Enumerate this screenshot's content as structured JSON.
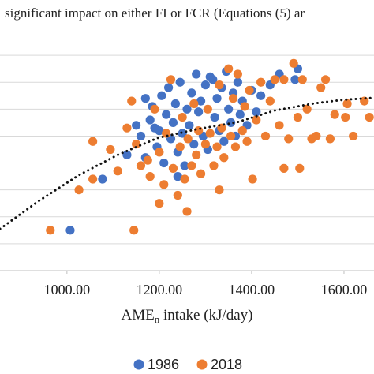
{
  "chart_data": {
    "type": "scatter",
    "annotation": "significant impact on either FI or FCR (Equations (5) ar",
    "x_label": [
      "AME",
      "n",
      " intake (kJ/day)"
    ],
    "xlim": [
      855,
      1665
    ],
    "ylim": [
      0,
      9
    ],
    "xticks": [
      {
        "value": 1000,
        "label": "1000.00"
      },
      {
        "value": 1200,
        "label": "1200.00"
      },
      {
        "value": 1400,
        "label": "1400.00"
      },
      {
        "value": 1600,
        "label": "1600.00"
      }
    ],
    "ygrid": [
      0,
      1,
      2,
      3,
      4,
      5,
      6,
      7,
      8
    ],
    "grid": true,
    "legend": "bottom",
    "series": [
      {
        "name": "1986",
        "color": "#4472c4",
        "x": [
          1007,
          1077,
          1130,
          1150,
          1160,
          1170,
          1180,
          1185,
          1195,
          1200,
          1205,
          1210,
          1215,
          1220,
          1225,
          1230,
          1235,
          1240,
          1245,
          1250,
          1255,
          1260,
          1265,
          1270,
          1275,
          1280,
          1285,
          1290,
          1295,
          1300,
          1305,
          1310,
          1316,
          1320,
          1325,
          1330,
          1335,
          1340,
          1345,
          1350,
          1355,
          1360,
          1365,
          1370,
          1375,
          1380,
          1390,
          1400,
          1410,
          1420,
          1440,
          1460,
          1494,
          1500,
          1170,
          1240,
          1190
        ],
        "values": [
          1.5,
          3.4,
          4.3,
          5.4,
          5.0,
          4.2,
          5.6,
          6.1,
          4.6,
          5.2,
          6.5,
          4.0,
          5.8,
          6.8,
          4.9,
          5.5,
          6.2,
          4.4,
          7.0,
          5.1,
          3.9,
          6.0,
          5.4,
          6.6,
          4.7,
          7.3,
          5.9,
          6.3,
          5.0,
          6.9,
          4.5,
          7.2,
          7.1,
          5.7,
          6.4,
          5.2,
          6.8,
          4.8,
          7.4,
          6.0,
          5.5,
          6.6,
          5.0,
          7.0,
          5.8,
          6.3,
          5.4,
          6.7,
          5.9,
          6.5,
          6.9,
          7.3,
          7.1,
          7.5,
          6.4,
          3.5,
          5.3
        ]
      },
      {
        "name": "2018",
        "color": "#ed7d31",
        "x": [
          964,
          1026,
          1056,
          1056,
          1094,
          1145,
          1110,
          1130,
          1140,
          1150,
          1160,
          1175,
          1180,
          1190,
          1200,
          1210,
          1215,
          1225,
          1230,
          1240,
          1245,
          1250,
          1255,
          1262,
          1270,
          1275,
          1280,
          1285,
          1290,
          1300,
          1305,
          1310,
          1318,
          1325,
          1330,
          1335,
          1340,
          1350,
          1355,
          1360,
          1365,
          1370,
          1380,
          1385,
          1390,
          1395,
          1402,
          1410,
          1420,
          1430,
          1440,
          1450,
          1460,
          1470,
          1470,
          1480,
          1491,
          1500,
          1504,
          1510,
          1520,
          1530,
          1540,
          1550,
          1560,
          1570,
          1580,
          1603,
          1607,
          1620,
          1644,
          1655,
          1200,
          1260,
          1330
        ],
        "values": [
          1.5,
          3.0,
          3.4,
          4.8,
          4.5,
          1.5,
          3.7,
          5.3,
          6.3,
          4.7,
          3.9,
          4.1,
          3.5,
          6.0,
          4.4,
          3.2,
          5.1,
          7.1,
          3.8,
          2.8,
          4.6,
          5.7,
          3.4,
          4.9,
          3.9,
          6.2,
          4.3,
          5.2,
          3.6,
          4.7,
          6.0,
          5.1,
          3.9,
          4.6,
          6.9,
          5.3,
          4.2,
          7.5,
          5.0,
          6.4,
          4.6,
          7.3,
          5.2,
          6.1,
          4.8,
          6.7,
          3.4,
          5.6,
          7.0,
          5.0,
          6.3,
          7.1,
          5.4,
          3.8,
          7.1,
          4.9,
          7.7,
          5.7,
          3.8,
          7.1,
          6.0,
          4.9,
          5.0,
          6.8,
          7.1,
          4.9,
          5.8,
          5.7,
          6.2,
          5.0,
          6.3,
          5.7,
          2.5,
          2.2,
          3.0
        ]
      }
    ],
    "trend": {
      "color": "#111111",
      "x": [
        855,
        940,
        1026,
        1110,
        1197,
        1280,
        1368,
        1450,
        1538,
        1600,
        1665
      ],
      "values": [
        1.55,
        2.6,
        3.55,
        4.3,
        4.93,
        5.25,
        5.51,
        5.95,
        6.22,
        6.35,
        6.42
      ]
    }
  }
}
